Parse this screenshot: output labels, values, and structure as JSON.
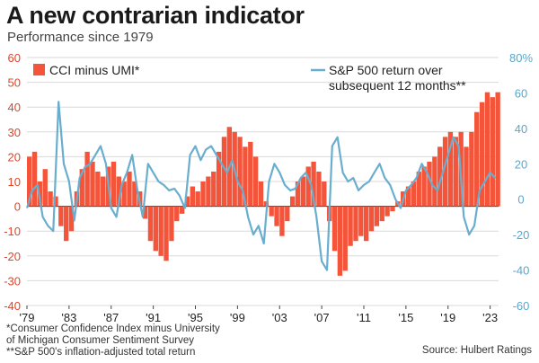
{
  "title": "A new contrarian indicator",
  "subtitle": "Performance since 1979",
  "footnotes": {
    "cci": "*Consumer Confidence Index minus University",
    "cci2": "of Michigan Consumer Sentiment Survey",
    "sp": "**S&P 500's inflation-adjusted total return"
  },
  "source": "Source: Hulbert Ratings",
  "legend": {
    "bars": "CCI minus UMI*",
    "line1": "S&P 500 return over",
    "line2": "subsequent 12 months**"
  },
  "colors": {
    "bars": "#f4553a",
    "line": "#6aaecf",
    "left_axis": "#e0442a",
    "right_axis": "#5aa7cc",
    "grid": "#d9d9d9"
  },
  "chart_data": {
    "type": "bar+line",
    "x_ticks": [
      "'79",
      "'83",
      "'87",
      "'91",
      "'95",
      "'99",
      "'03",
      "'07",
      "'11",
      "'15",
      "'19",
      "'23"
    ],
    "x_tick_years": [
      1979,
      1983,
      1987,
      1991,
      1995,
      1999,
      2003,
      2007,
      2011,
      2015,
      2019,
      2023
    ],
    "xlim": [
      1979,
      2023.8
    ],
    "left_axis": {
      "ticks": [
        "60",
        "50",
        "40",
        "30",
        "20",
        "10",
        "0",
        "-10",
        "-20",
        "-30",
        "-40"
      ],
      "ylim": [
        -40,
        60
      ]
    },
    "right_axis": {
      "ticks": [
        "80%",
        "60",
        "40",
        "20",
        "0",
        "-20",
        "-40",
        "-60"
      ],
      "ylim": [
        -60,
        80
      ]
    },
    "grid": true,
    "series": [
      {
        "name": "CCI minus UMI*",
        "kind": "bar",
        "x": [
          1979.0,
          1979.5,
          1980.0,
          1980.5,
          1981.0,
          1981.5,
          1982.0,
          1982.5,
          1983.0,
          1983.5,
          1984.0,
          1984.5,
          1985.0,
          1985.5,
          1986.0,
          1986.5,
          1987.0,
          1987.5,
          1988.0,
          1988.5,
          1989.0,
          1989.5,
          1990.0,
          1990.5,
          1991.0,
          1991.5,
          1992.0,
          1992.5,
          1993.0,
          1993.5,
          1994.0,
          1994.5,
          1995.0,
          1995.5,
          1996.0,
          1996.5,
          1997.0,
          1997.5,
          1998.0,
          1998.5,
          1999.0,
          1999.5,
          2000.0,
          2000.5,
          2001.0,
          2001.5,
          2002.0,
          2002.5,
          2003.0,
          2003.5,
          2004.0,
          2004.5,
          2005.0,
          2005.5,
          2006.0,
          2006.5,
          2007.0,
          2007.5,
          2008.0,
          2008.5,
          2009.0,
          2009.5,
          2010.0,
          2010.5,
          2011.0,
          2011.5,
          2012.0,
          2012.5,
          2013.0,
          2013.5,
          2014.0,
          2014.5,
          2015.0,
          2015.5,
          2016.0,
          2016.5,
          2017.0,
          2017.5,
          2018.0,
          2018.5,
          2019.0,
          2019.5,
          2020.0,
          2020.5,
          2021.0,
          2021.5,
          2022.0,
          2022.5,
          2023.0,
          2023.5
        ],
        "values": [
          20,
          22,
          10,
          15,
          6,
          4,
          -8,
          -14,
          -10,
          6,
          15,
          22,
          18,
          14,
          12,
          16,
          18,
          12,
          10,
          14,
          10,
          6,
          -5,
          -14,
          -18,
          -20,
          -22,
          -14,
          -6,
          -3,
          4,
          8,
          6,
          10,
          12,
          14,
          22,
          28,
          32,
          30,
          28,
          24,
          26,
          20,
          10,
          2,
          -4,
          -8,
          -12,
          -6,
          4,
          10,
          12,
          16,
          18,
          14,
          10,
          -6,
          -18,
          -28,
          -26,
          -16,
          -14,
          -12,
          -14,
          -10,
          -8,
          -6,
          -4,
          -2,
          2,
          6,
          8,
          10,
          14,
          16,
          18,
          20,
          24,
          28,
          30,
          28,
          30,
          24,
          30,
          38,
          42,
          46,
          44,
          46
        ]
      },
      {
        "name": "S&P 500 return over subsequent 12 months**",
        "kind": "line",
        "axis": "right",
        "x": [
          1979.0,
          1979.5,
          1980.0,
          1980.5,
          1981.0,
          1981.5,
          1982.0,
          1982.5,
          1983.0,
          1983.5,
          1984.0,
          1984.5,
          1985.0,
          1985.5,
          1986.0,
          1986.5,
          1987.0,
          1987.5,
          1988.0,
          1988.5,
          1989.0,
          1989.5,
          1990.0,
          1990.5,
          1991.0,
          1991.5,
          1992.0,
          1992.5,
          1993.0,
          1993.5,
          1994.0,
          1994.5,
          1995.0,
          1995.5,
          1996.0,
          1996.5,
          1997.0,
          1997.5,
          1998.0,
          1998.5,
          1999.0,
          1999.5,
          2000.0,
          2000.5,
          2001.0,
          2001.5,
          2002.0,
          2002.5,
          2003.0,
          2003.5,
          2004.0,
          2004.5,
          2005.0,
          2005.5,
          2006.0,
          2006.5,
          2007.0,
          2007.5,
          2008.0,
          2008.5,
          2009.0,
          2009.5,
          2010.0,
          2010.5,
          2011.0,
          2011.5,
          2012.0,
          2012.5,
          2013.0,
          2013.5,
          2014.0,
          2014.5,
          2015.0,
          2015.5,
          2016.0,
          2016.5,
          2017.0,
          2017.5,
          2018.0,
          2018.5,
          2019.0,
          2019.5,
          2020.0,
          2020.5,
          2021.0,
          2021.5,
          2022.0,
          2022.5,
          2023.0,
          2023.5
        ],
        "values": [
          -5,
          5,
          8,
          -10,
          -15,
          -18,
          55,
          20,
          10,
          -12,
          12,
          18,
          20,
          25,
          30,
          20,
          -5,
          -10,
          8,
          15,
          25,
          5,
          -10,
          20,
          15,
          10,
          8,
          5,
          6,
          2,
          -5,
          25,
          30,
          22,
          28,
          30,
          25,
          20,
          15,
          22,
          10,
          5,
          -10,
          -20,
          -15,
          -25,
          10,
          20,
          15,
          8,
          5,
          6,
          12,
          15,
          8,
          -10,
          -35,
          -40,
          30,
          35,
          15,
          10,
          12,
          5,
          8,
          10,
          15,
          20,
          12,
          8,
          0,
          -5,
          5,
          8,
          12,
          20,
          15,
          8,
          5,
          15,
          25,
          35,
          30,
          -10,
          -20,
          -15,
          5,
          10,
          15,
          12
        ]
      }
    ]
  }
}
